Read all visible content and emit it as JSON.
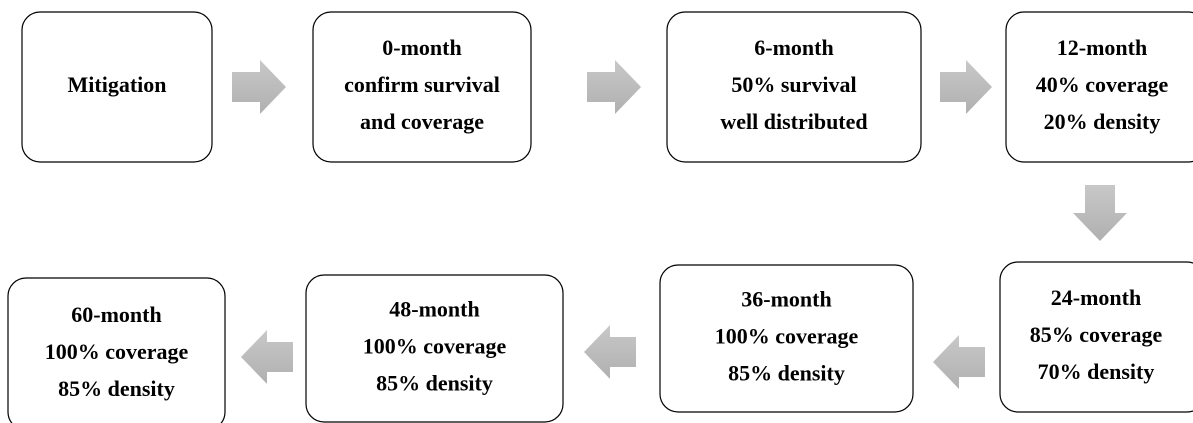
{
  "nodes": [
    {
      "lines": [
        "Mitigation"
      ]
    },
    {
      "lines": [
        "0-month",
        "confirm survival",
        "and coverage"
      ]
    },
    {
      "lines": [
        "6-month",
        "50% survival",
        "well distributed"
      ]
    },
    {
      "lines": [
        "12-month",
        "40% coverage",
        "20% density"
      ]
    },
    {
      "lines": [
        "24-month",
        "85% coverage",
        "70% density"
      ]
    },
    {
      "lines": [
        "36-month",
        "100% coverage",
        "85% density"
      ]
    },
    {
      "lines": [
        "48-month",
        "100% coverage",
        "85% density"
      ]
    },
    {
      "lines": [
        "60-month",
        "100% coverage",
        "85% density"
      ]
    }
  ]
}
